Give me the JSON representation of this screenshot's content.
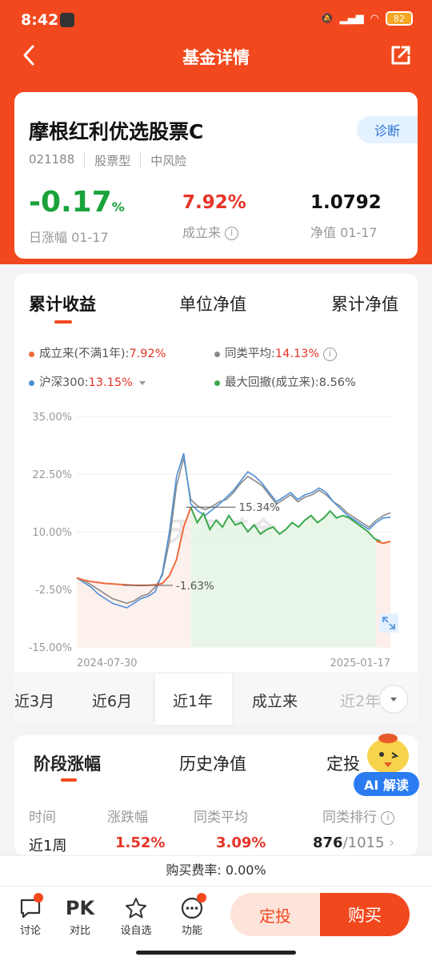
{
  "status": {
    "time": "8:42",
    "battery": "82"
  },
  "nav": {
    "title": "基金详情"
  },
  "fund": {
    "name": "摩根红利优选股票C",
    "code": "021188",
    "type": "股票型",
    "risk": "中风险",
    "diagnose": "诊断",
    "daily_change": "-0.17",
    "daily_change_unit": "%",
    "daily_label": "日涨幅 01-17",
    "since_inception": "7.92%",
    "since_inception_label": "成立来",
    "nav_value": "1.0792",
    "nav_label": "净值 01-17"
  },
  "chart_tabs": {
    "t1": "累计收益",
    "t2": "单位净值",
    "t3": "累计净值"
  },
  "legend": {
    "fund_label": "成立来(不满1年):",
    "fund_value": "7.92%",
    "peer_label": "同类平均:",
    "peer_value": "14.13%",
    "index_label": "沪深300:",
    "index_value": "13.15%",
    "dd_label": "最大回撤(成立来):",
    "dd_value": "8.56%"
  },
  "colors": {
    "accent": "#f2481d",
    "fund": "#f06a3c",
    "peer": "#8a8a8a",
    "index": "#4f8ed6",
    "drawdown": "#3aa94a",
    "up": "#e53427",
    "down": "#1aa33b"
  },
  "watermark": "天天基金",
  "chart_data": {
    "type": "line",
    "y_ticks": [
      "35.00%",
      "22.50%",
      "10.00%",
      "-2.50%",
      "-15.00%"
    ],
    "ylim": [
      -15,
      35
    ],
    "x_start": "2024-07-30",
    "x_end": "2025-01-17",
    "annotations": [
      {
        "text": "15.34%",
        "value": 15.34
      },
      {
        "text": "-1.63%",
        "value": -1.63
      }
    ],
    "series": [
      {
        "name": "成立来(不满1年)",
        "color": "#f06a3c",
        "values": [
          0,
          -0.5,
          -0.8,
          -1.0,
          -1.2,
          -1.3,
          -1.4,
          -1.5,
          -1.6,
          -1.63,
          -1.6,
          -1.5,
          -1.2,
          0.5,
          4,
          11,
          15.3,
          15.0,
          14.5,
          14.2,
          14.0,
          13.8,
          13.2,
          12.5,
          13.0,
          13.5,
          12.8,
          12.0,
          12.5,
          13.0,
          12.8,
          12.2,
          12.6,
          13.5,
          14.0,
          13.8,
          13.2,
          12.0,
          11.5,
          11.0,
          10.5,
          9.0,
          8.0,
          7.5,
          7.92
        ]
      },
      {
        "name": "同类平均",
        "color": "#8a8a8a",
        "values": [
          0,
          -0.6,
          -1.5,
          -2.5,
          -3.5,
          -4.5,
          -5.0,
          -5.5,
          -5.0,
          -4.0,
          -3.5,
          -2.0,
          0.5,
          8,
          20,
          26,
          17,
          15.5,
          14.8,
          15.5,
          16.5,
          17.0,
          18.5,
          20.5,
          22,
          21,
          20,
          18,
          16,
          17,
          18,
          16.5,
          17.5,
          18,
          19,
          18,
          16.5,
          15.5,
          14,
          13,
          12,
          11,
          12.5,
          13.5,
          14.13
        ]
      },
      {
        "name": "沪深300",
        "color": "#4f8ed6",
        "values": [
          0,
          -1.0,
          -2.0,
          -3.5,
          -4.5,
          -5.5,
          -6.0,
          -6.5,
          -5.5,
          -4.5,
          -4.0,
          -3.0,
          1.0,
          10,
          22,
          27,
          16,
          14.5,
          13.5,
          14.8,
          16.0,
          17.5,
          19.0,
          21.0,
          23,
          22,
          20.5,
          18.5,
          16.5,
          17.5,
          18.5,
          17,
          18,
          18.5,
          19.5,
          18.5,
          16.5,
          15,
          13.5,
          12.5,
          11.5,
          10.5,
          12,
          13,
          13.15
        ]
      },
      {
        "name": "最大回撤(成立来)",
        "color": "#3aa94a",
        "values": [
          15.3,
          12.0,
          14.0,
          10.5,
          12.5,
          11.0,
          13.5,
          11.5,
          12.0,
          10.0,
          11.5,
          9.5,
          10.5,
          11.0,
          9.5,
          10.5,
          12.0,
          11.0,
          12.5,
          13.5,
          12.0,
          13.0,
          14.5,
          13.0,
          13.5,
          13.0,
          12.0,
          11.0,
          10.0,
          8.5,
          7.9
        ]
      }
    ]
  },
  "ranges": {
    "r1": "近3月",
    "r2": "近6月",
    "r3": "近1年",
    "r4": "成立来",
    "r5": "近2年"
  },
  "stage_tabs": {
    "t1": "阶段涨幅",
    "t2": "历史净值",
    "t3": "定投"
  },
  "ai": {
    "label": "AI 解读"
  },
  "table": {
    "headers": {
      "h1": "时间",
      "h2": "涨跌幅",
      "h3": "同类平均",
      "h4": "同类排行"
    },
    "row1": {
      "period": "近1周",
      "change": "1.52%",
      "peer": "3.09%",
      "rank": "876",
      "rank_total": "/1015"
    }
  },
  "fee": {
    "label": "购买费率:",
    "value": "0.00%"
  },
  "bottom": {
    "discuss": "讨论",
    "pk_icon": "PK",
    "compare": "对比",
    "watch": "设自选",
    "func": "功能",
    "plan": "定投",
    "buy": "购买"
  }
}
